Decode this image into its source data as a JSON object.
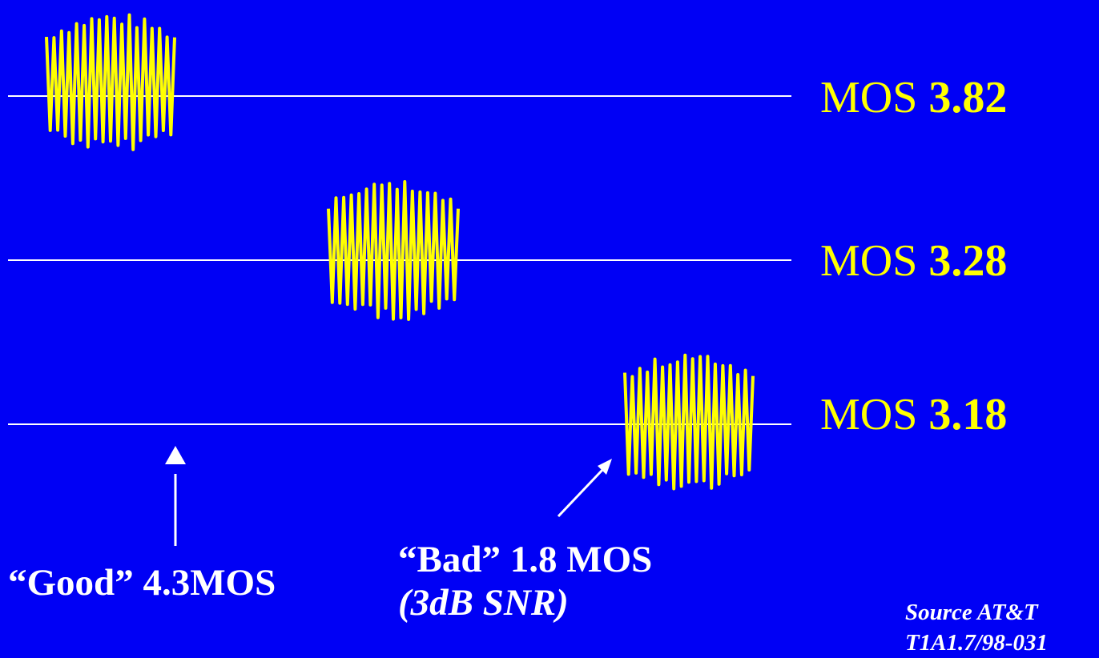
{
  "colors": {
    "background": "#0000f5",
    "waveform": "#ffff00",
    "baseline": "#ffffff",
    "text": "#ffffff",
    "mos_text": "#ffff00"
  },
  "rows": [
    {
      "label_prefix": "MOS ",
      "value": "3.82"
    },
    {
      "label_prefix": "MOS ",
      "value": "3.28"
    },
    {
      "label_prefix": "MOS ",
      "value": "3.18"
    }
  ],
  "annotations": {
    "good": "“Good” 4.3MOS",
    "bad_line1": "“Bad” 1.8 MOS",
    "bad_line2": "(3dB SNR)"
  },
  "source": {
    "line1": "Source AT&T",
    "line2": "T1A1.7/98-031"
  }
}
